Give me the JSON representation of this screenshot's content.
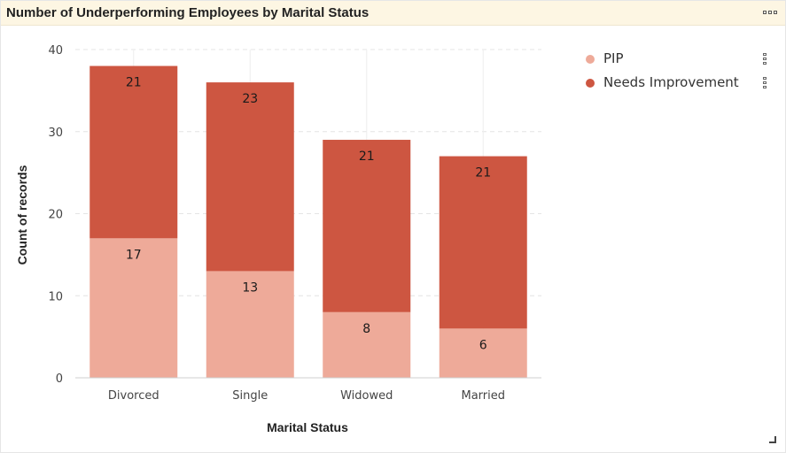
{
  "panel": {
    "title": "Number of Underperforming Employees by Marital Status",
    "menu_icon": "more-options-icon",
    "resize_icon": "resize-corner-icon"
  },
  "chart_data": {
    "type": "bar",
    "stacked": true,
    "categories": [
      "Divorced",
      "Single",
      "Widowed",
      "Married"
    ],
    "series": [
      {
        "name": "PIP",
        "values": [
          17,
          13,
          8,
          6
        ],
        "color": "#eeaa99"
      },
      {
        "name": "Needs Improvement",
        "values": [
          21,
          23,
          21,
          21
        ],
        "color": "#cd5641"
      }
    ],
    "xlabel": "Marital Status",
    "ylabel": "Count of records",
    "ylim": [
      0,
      40
    ],
    "yticks": [
      0,
      10,
      20,
      30,
      40
    ],
    "grid": true,
    "legend_position": "right"
  }
}
